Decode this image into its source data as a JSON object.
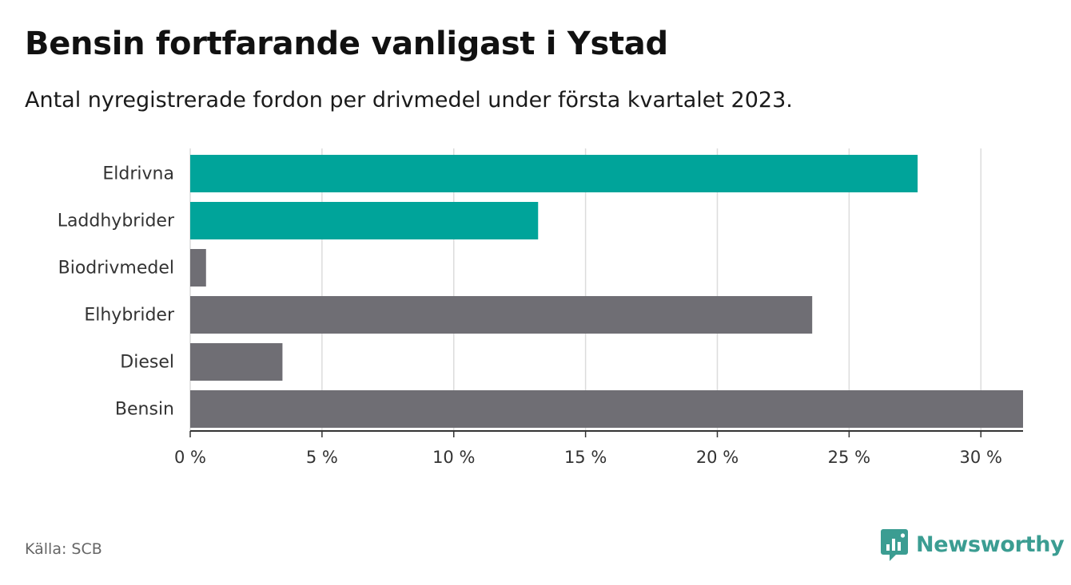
{
  "header": {
    "title": "Bensin fortfarande vanligast i Ystad",
    "subtitle": "Antal nyregistrerade fordon per drivmedel under första kvartalet 2023."
  },
  "footer": {
    "source": "Källa: SCB",
    "brand": "Newsworthy"
  },
  "colors": {
    "highlight": "#00a49a",
    "default": "#6f6e74",
    "grid": "#dcdcdc",
    "axis": "#333333",
    "brand": "#3b9d92"
  },
  "chart_data": {
    "type": "bar",
    "orientation": "horizontal",
    "categories": [
      "Eldrivna",
      "Laddhybrider",
      "Biodrivmedel",
      "Elhybrider",
      "Diesel",
      "Bensin"
    ],
    "values": [
      27.6,
      13.2,
      0.6,
      23.6,
      3.5,
      31.6
    ],
    "highlighted": [
      true,
      true,
      false,
      false,
      false,
      false
    ],
    "xlim": [
      0,
      31.6
    ],
    "x_ticks": [
      0,
      5,
      10,
      15,
      20,
      25,
      30
    ],
    "x_tick_labels": [
      "0 %",
      "5 %",
      "10 %",
      "15 %",
      "20 %",
      "25 %",
      "30 %"
    ],
    "grid": "vertical",
    "legend": "none"
  }
}
